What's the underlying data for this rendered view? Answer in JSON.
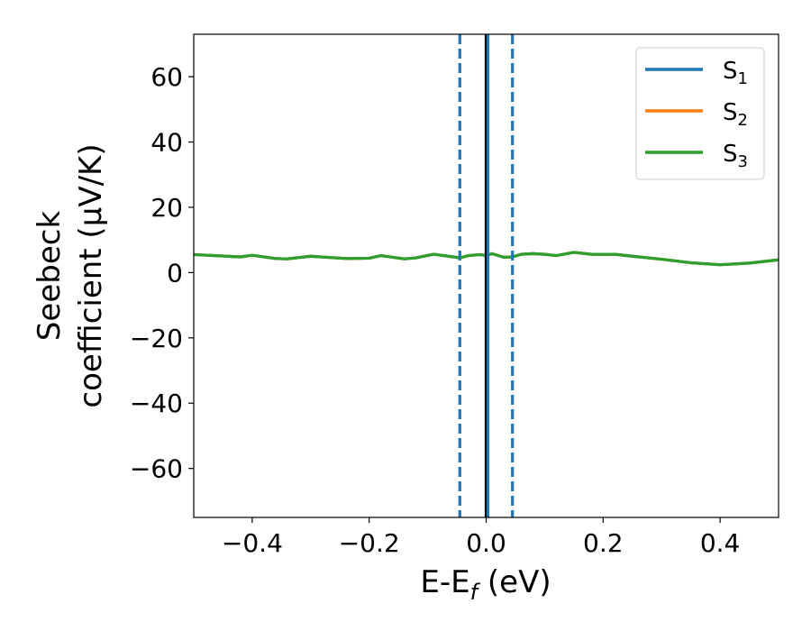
{
  "chart_data": {
    "type": "line",
    "xlabel": "E-E",
    "xlabel_sub": "f",
    "xlabel_unit": " (eV)",
    "ylabel_line1": "Seebeck",
    "ylabel_line2": "coefficient  (μV/K)",
    "xlim": [
      -0.5,
      0.5
    ],
    "ylim": [
      -75,
      73
    ],
    "x_ticks": [
      -0.4,
      -0.2,
      0.0,
      0.2,
      0.4
    ],
    "x_tick_labels": [
      "−0.4",
      "−0.2",
      "0.0",
      "0.2",
      "0.4"
    ],
    "y_ticks": [
      60,
      40,
      20,
      0,
      -20,
      -40,
      -60
    ],
    "y_tick_labels": [
      "60",
      "40",
      "20",
      "0",
      "−20",
      "−40",
      "−60"
    ],
    "grid": false,
    "legend_position": "top-right",
    "series": [
      {
        "name": "S",
        "sub": "1",
        "color": "#1f77b4",
        "x": [
          -0.5,
          -0.42,
          -0.4,
          -0.36,
          -0.34,
          -0.3,
          -0.24,
          -0.2,
          -0.18,
          -0.14,
          -0.12,
          -0.09,
          -0.06,
          -0.045,
          -0.03,
          -0.01,
          0.0,
          0.01,
          0.03,
          0.045,
          0.06,
          0.08,
          0.1,
          0.12,
          0.15,
          0.18,
          0.22,
          0.25,
          0.3,
          0.35,
          0.4,
          0.45,
          0.5
        ],
        "y": [
          5.5,
          4.8,
          5.3,
          4.3,
          4.2,
          5.0,
          4.3,
          4.4,
          5.2,
          4.2,
          4.5,
          5.6,
          4.9,
          4.5,
          5.2,
          5.5,
          5.2,
          5.8,
          4.7,
          4.8,
          5.6,
          5.8,
          5.6,
          5.2,
          6.2,
          5.6,
          5.6,
          5.0,
          4.1,
          3.0,
          2.4,
          2.9,
          3.9
        ]
      },
      {
        "name": "S",
        "sub": "2",
        "color": "#ff7f0e",
        "x": [
          -0.5,
          -0.42,
          -0.4,
          -0.36,
          -0.34,
          -0.3,
          -0.24,
          -0.2,
          -0.18,
          -0.14,
          -0.12,
          -0.09,
          -0.06,
          -0.045,
          -0.03,
          -0.01,
          0.0,
          0.01,
          0.03,
          0.045,
          0.06,
          0.08,
          0.1,
          0.12,
          0.15,
          0.18,
          0.22,
          0.25,
          0.3,
          0.35,
          0.4,
          0.45,
          0.5
        ],
        "y": [
          5.5,
          4.8,
          5.3,
          4.3,
          4.2,
          5.0,
          4.3,
          4.4,
          5.2,
          4.2,
          4.5,
          5.6,
          4.9,
          4.5,
          5.2,
          5.5,
          5.2,
          5.8,
          4.7,
          4.8,
          5.6,
          5.8,
          5.6,
          5.2,
          6.2,
          5.6,
          5.6,
          5.0,
          4.1,
          3.0,
          2.4,
          2.9,
          3.9
        ]
      },
      {
        "name": "S",
        "sub": "3",
        "color": "#2ca02c",
        "x": [
          -0.5,
          -0.42,
          -0.4,
          -0.36,
          -0.34,
          -0.3,
          -0.24,
          -0.2,
          -0.18,
          -0.14,
          -0.12,
          -0.09,
          -0.06,
          -0.045,
          -0.03,
          -0.01,
          0.0,
          0.01,
          0.03,
          0.045,
          0.06,
          0.08,
          0.1,
          0.12,
          0.15,
          0.18,
          0.22,
          0.25,
          0.3,
          0.35,
          0.4,
          0.45,
          0.5
        ],
        "y": [
          5.5,
          4.8,
          5.3,
          4.3,
          4.2,
          5.0,
          4.3,
          4.4,
          5.2,
          4.2,
          4.5,
          5.6,
          4.9,
          4.5,
          5.2,
          5.5,
          5.2,
          5.8,
          4.7,
          4.8,
          5.6,
          5.8,
          5.6,
          5.2,
          6.2,
          5.6,
          5.6,
          5.0,
          4.1,
          3.0,
          2.4,
          2.9,
          3.9
        ]
      }
    ],
    "vlines": [
      {
        "x": -0.045,
        "color": "#1f77b4",
        "style": "dashed"
      },
      {
        "x": 0.0,
        "color": "#000000",
        "style": "solid"
      },
      {
        "x": 0.003,
        "color": "#1f77b4",
        "style": "solid"
      },
      {
        "x": 0.045,
        "color": "#1f77b4",
        "style": "dashed"
      }
    ]
  }
}
